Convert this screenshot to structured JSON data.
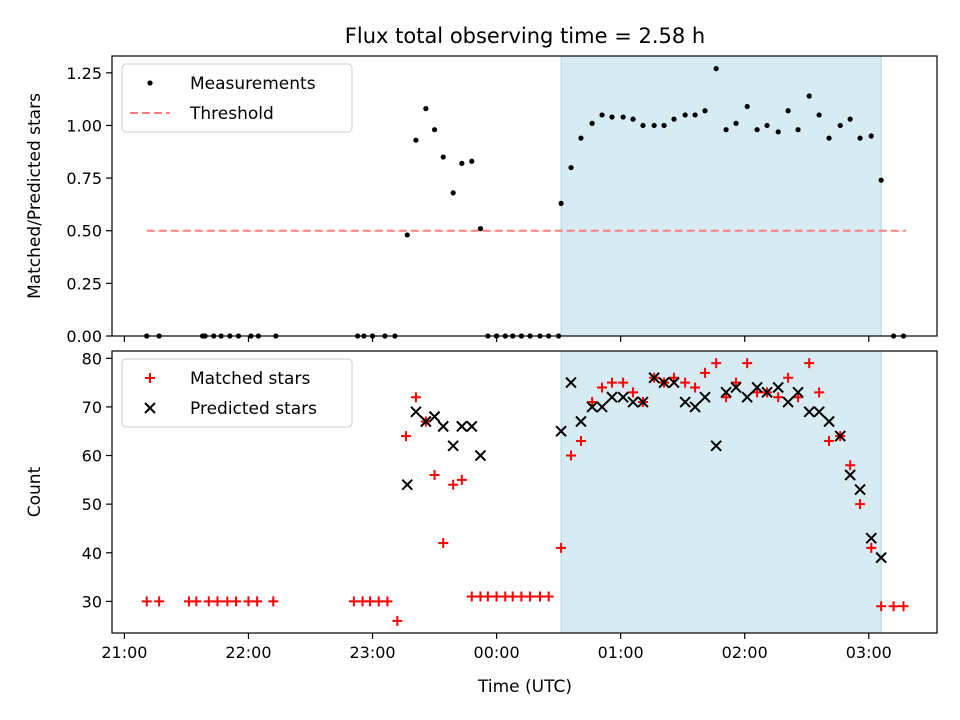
{
  "title": "Flux total observing time = 2.58 h",
  "xlabel": "Time (UTC)",
  "xticks": [
    "21:00",
    "22:00",
    "23:00",
    "00:00",
    "01:00",
    "02:00",
    "03:00"
  ],
  "chart_data": [
    {
      "type": "scatter",
      "panel": "top",
      "ylabel": "Matched/Predicted stars",
      "ylim": [
        0,
        1.33
      ],
      "yticks": [
        "0.00",
        "0.25",
        "0.50",
        "0.75",
        "1.00",
        "1.25"
      ],
      "x_unit": "hours from 21:00 UTC",
      "xlim": [
        -0.1,
        6.55
      ],
      "shaded_region": {
        "from": 3.52,
        "to": 6.1
      },
      "legend": {
        "placement": "top-left",
        "entries": [
          "Measurements",
          "Threshold"
        ]
      },
      "threshold": {
        "name": "Threshold",
        "value": 0.5,
        "x_from": 0.18,
        "x_to": 6.3,
        "color": "#ff7f7f"
      },
      "series": [
        {
          "name": "Measurements",
          "color": "#000000",
          "x": [
            0.18,
            0.28,
            0.63,
            0.65,
            0.72,
            0.78,
            0.85,
            0.92,
            1.02,
            1.08,
            1.22,
            1.88,
            1.93,
            2.0,
            2.1,
            2.18,
            2.28,
            2.35,
            2.43,
            2.5,
            2.57,
            2.65,
            2.72,
            2.8,
            2.87,
            2.93,
            3.0,
            3.07,
            3.13,
            3.2,
            3.27,
            3.35,
            3.42,
            3.5,
            3.52,
            3.6,
            3.68,
            3.77,
            3.85,
            3.93,
            4.02,
            4.1,
            4.18,
            4.27,
            4.35,
            4.43,
            4.52,
            4.6,
            4.68,
            4.77,
            4.85,
            4.93,
            5.02,
            5.1,
            5.18,
            5.27,
            5.35,
            5.43,
            5.52,
            5.6,
            5.68,
            5.77,
            5.85,
            5.93,
            6.02,
            6.1,
            6.2,
            6.28
          ],
          "y": [
            0,
            0,
            0,
            0,
            0,
            0,
            0,
            0,
            0,
            0,
            0,
            0,
            0,
            0,
            0,
            0,
            0.48,
            0.93,
            1.08,
            0.98,
            0.85,
            0.68,
            0.82,
            0.83,
            0.51,
            0,
            0,
            0,
            0,
            0,
            0,
            0,
            0,
            0,
            0.63,
            0.8,
            0.94,
            1.01,
            1.05,
            1.04,
            1.04,
            1.03,
            1.0,
            1.0,
            1.0,
            1.03,
            1.05,
            1.05,
            1.07,
            1.27,
            0.98,
            1.01,
            1.09,
            0.98,
            1.0,
            0.97,
            1.07,
            0.98,
            1.14,
            1.05,
            0.94,
            1.0,
            1.03,
            0.94,
            0.95,
            0.74,
            0,
            0
          ]
        }
      ]
    },
    {
      "type": "scatter",
      "panel": "bottom",
      "ylabel": "Count",
      "ylim": [
        23.5,
        81.5
      ],
      "yticks": [
        "30",
        "40",
        "50",
        "60",
        "70",
        "80"
      ],
      "x_unit": "hours from 21:00 UTC",
      "xlim": [
        -0.1,
        6.55
      ],
      "shaded_region": {
        "from": 3.52,
        "to": 6.1
      },
      "legend": {
        "placement": "top-left",
        "entries": [
          "Matched stars",
          "Predicted stars"
        ]
      },
      "series": [
        {
          "name": "Matched stars",
          "marker": "plus",
          "color": "#ff0000",
          "x": [
            0.18,
            0.28,
            0.52,
            0.58,
            0.68,
            0.75,
            0.83,
            0.9,
            1.0,
            1.07,
            1.2,
            1.85,
            1.92,
            1.98,
            2.05,
            2.12,
            2.2,
            2.27,
            2.35,
            2.43,
            2.5,
            2.57,
            2.65,
            2.72,
            2.8,
            2.87,
            2.93,
            3.0,
            3.07,
            3.13,
            3.2,
            3.27,
            3.35,
            3.42,
            3.52,
            3.6,
            3.68,
            3.77,
            3.85,
            3.93,
            4.02,
            4.1,
            4.18,
            4.27,
            4.35,
            4.43,
            4.52,
            4.6,
            4.68,
            4.77,
            4.85,
            4.93,
            5.02,
            5.1,
            5.18,
            5.27,
            5.35,
            5.43,
            5.52,
            5.6,
            5.68,
            5.77,
            5.85,
            5.93,
            6.02,
            6.1,
            6.2,
            6.28
          ],
          "y": [
            30,
            30,
            30,
            30,
            30,
            30,
            30,
            30,
            30,
            30,
            30,
            30,
            30,
            30,
            30,
            30,
            26,
            64,
            72,
            67,
            56,
            42,
            54,
            55,
            31,
            31,
            31,
            31,
            31,
            31,
            31,
            31,
            31,
            31,
            41,
            60,
            63,
            71,
            74,
            75,
            75,
            73,
            71,
            76,
            75,
            76,
            75,
            74,
            77,
            79,
            72,
            75,
            79,
            73,
            73,
            72,
            76,
            72,
            79,
            73,
            63,
            64,
            58,
            50,
            41,
            29,
            29,
            29
          ]
        },
        {
          "name": "Predicted stars",
          "marker": "x",
          "color": "#000000",
          "x": [
            2.28,
            2.35,
            2.43,
            2.5,
            2.57,
            2.65,
            2.72,
            2.8,
            2.87,
            3.52,
            3.6,
            3.68,
            3.77,
            3.85,
            3.93,
            4.02,
            4.1,
            4.18,
            4.27,
            4.35,
            4.43,
            4.52,
            4.6,
            4.68,
            4.77,
            4.85,
            4.93,
            5.02,
            5.1,
            5.18,
            5.27,
            5.35,
            5.43,
            5.52,
            5.6,
            5.68,
            5.77,
            5.85,
            5.93,
            6.02,
            6.1
          ],
          "y": [
            54,
            69,
            67,
            68,
            66,
            62,
            66,
            66,
            60,
            65,
            75,
            67,
            70,
            70,
            72,
            72,
            71,
            71,
            76,
            75,
            75,
            71,
            70,
            72,
            62,
            73,
            74,
            72,
            74,
            73,
            74,
            71,
            73,
            69,
            69,
            67,
            64,
            56,
            53,
            43,
            39
          ]
        }
      ]
    }
  ]
}
